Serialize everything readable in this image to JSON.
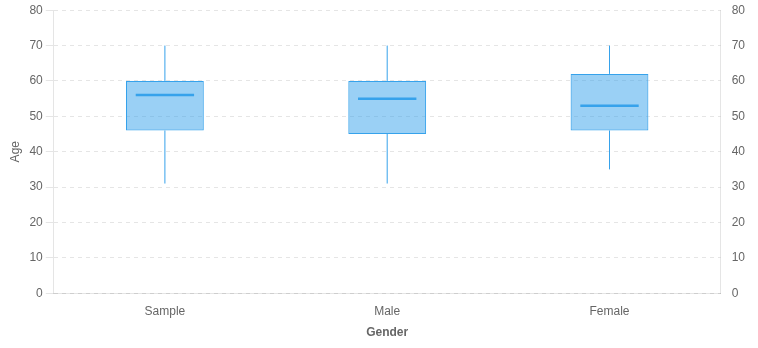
{
  "chart_data": {
    "type": "box",
    "xlabel": "Gender",
    "ylabel": "Age",
    "categories": [
      "Sample",
      "Male",
      "Female"
    ],
    "whisker_low": [
      31,
      31,
      35
    ],
    "q1": [
      46,
      45,
      46
    ],
    "median": [
      56,
      55,
      53
    ],
    "q3": [
      60,
      60,
      62
    ],
    "whisker_high": [
      70,
      70,
      70
    ],
    "ylim": [
      0,
      80
    ],
    "yticks": [
      0,
      10,
      20,
      30,
      40,
      50,
      60,
      70,
      80
    ],
    "y2lim": [
      0,
      80
    ],
    "y2ticks": [
      0,
      10,
      20,
      30,
      40,
      50,
      60,
      70,
      80
    ],
    "grid": "y"
  }
}
